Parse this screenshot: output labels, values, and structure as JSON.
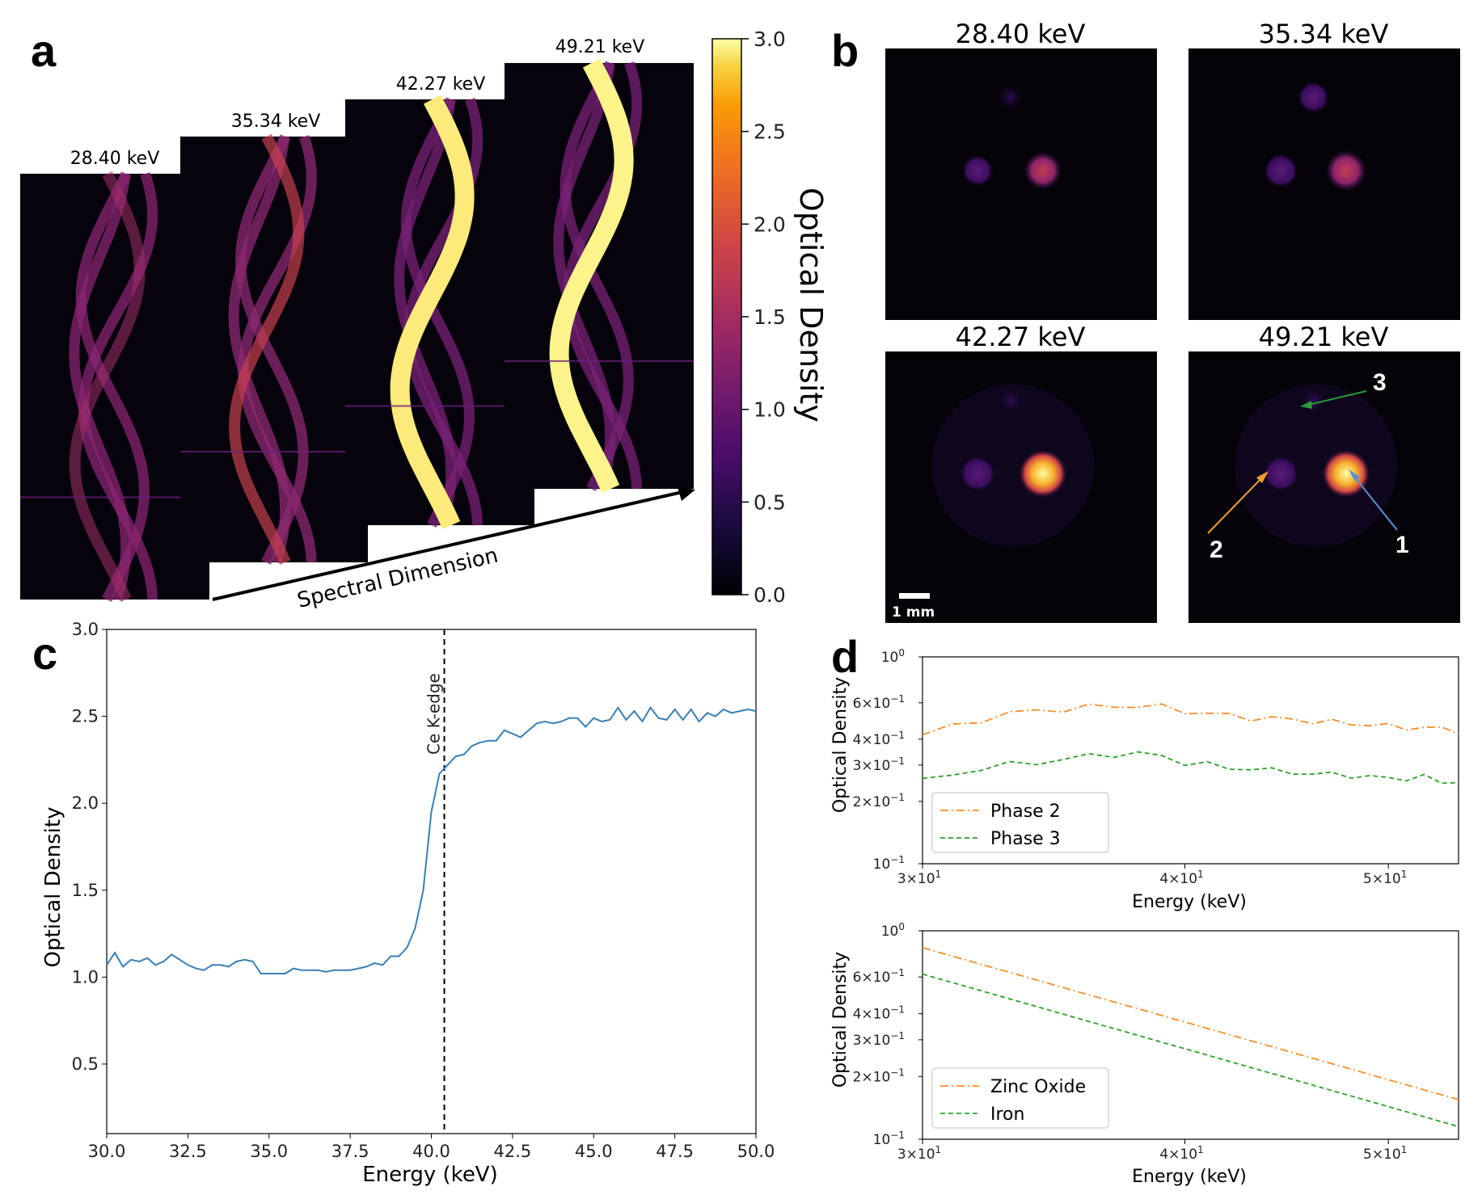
{
  "panel_letters": {
    "a": "a",
    "b": "b",
    "c": "c",
    "d": "d"
  },
  "panel_a": {
    "energies": [
      "28.40 keV",
      "35.34 keV",
      "42.27 keV",
      "49.21 keV"
    ],
    "arrow_label": "Spectral Dimension"
  },
  "colorbar": {
    "title": "Optical Density",
    "colormap": "inferno",
    "ticks": [
      "0.0",
      "0.5",
      "1.0",
      "1.5",
      "2.0",
      "2.5",
      "3.0"
    ],
    "range": [
      0,
      3
    ]
  },
  "panel_b": {
    "energies": [
      "28.40 keV",
      "35.34 keV",
      "42.27 keV",
      "49.21 keV"
    ],
    "scale_bar": "1 mm",
    "annotations": [
      "1",
      "2",
      "3"
    ],
    "annotation_colors": {
      "1": "#5b8fd4",
      "2": "#f0a030",
      "3": "#2a9d3a"
    }
  },
  "chart_data": [
    {
      "type": "line",
      "panel": "c",
      "xlabel": "Energy (keV)",
      "ylabel": "Optical Density",
      "xlim": [
        30,
        50
      ],
      "ylim": [
        0.1,
        3.0
      ],
      "xticks": [
        "30.0",
        "32.5",
        "35.0",
        "37.5",
        "40.0",
        "42.5",
        "45.0",
        "47.5",
        "50.0"
      ],
      "yticks": [
        "0.5",
        "1.0",
        "1.5",
        "2.0",
        "2.5",
        "3.0"
      ],
      "vline": {
        "x": 40.4,
        "label": "Ce K-edge"
      },
      "color": "#3a7fb5",
      "x": [
        30.0,
        30.25,
        30.5,
        30.75,
        31.0,
        31.25,
        31.5,
        31.75,
        32.0,
        32.25,
        32.5,
        32.75,
        33.0,
        33.25,
        33.5,
        33.75,
        34.0,
        34.25,
        34.5,
        34.75,
        35.0,
        35.25,
        35.5,
        35.75,
        36.0,
        36.25,
        36.5,
        36.75,
        37.0,
        37.25,
        37.5,
        37.75,
        38.0,
        38.25,
        38.5,
        38.75,
        39.0,
        39.25,
        39.5,
        39.75,
        40.0,
        40.25,
        40.5,
        40.75,
        41.0,
        41.25,
        41.5,
        41.75,
        42.0,
        42.25,
        42.5,
        42.75,
        43.0,
        43.25,
        43.5,
        43.75,
        44.0,
        44.25,
        44.5,
        44.75,
        45.0,
        45.25,
        45.5,
        45.75,
        46.0,
        46.25,
        46.5,
        46.75,
        47.0,
        47.25,
        47.5,
        47.75,
        48.0,
        48.25,
        48.5,
        48.75,
        49.0,
        49.25,
        49.5,
        49.75,
        50.0
      ],
      "y": [
        1.07,
        1.14,
        1.06,
        1.1,
        1.09,
        1.11,
        1.07,
        1.09,
        1.13,
        1.1,
        1.07,
        1.05,
        1.04,
        1.07,
        1.07,
        1.06,
        1.09,
        1.1,
        1.09,
        1.02,
        1.02,
        1.02,
        1.02,
        1.05,
        1.04,
        1.04,
        1.04,
        1.03,
        1.04,
        1.04,
        1.04,
        1.05,
        1.06,
        1.08,
        1.07,
        1.12,
        1.12,
        1.17,
        1.28,
        1.5,
        1.95,
        2.17,
        2.22,
        2.27,
        2.28,
        2.33,
        2.35,
        2.36,
        2.36,
        2.42,
        2.4,
        2.38,
        2.42,
        2.46,
        2.47,
        2.46,
        2.47,
        2.49,
        2.49,
        2.44,
        2.49,
        2.47,
        2.48,
        2.55,
        2.48,
        2.53,
        2.47,
        2.55,
        2.49,
        2.48,
        2.54,
        2.48,
        2.54,
        2.47,
        2.52,
        2.5,
        2.54,
        2.52,
        2.53,
        2.54,
        2.53
      ]
    },
    {
      "type": "line",
      "panel": "d-top",
      "xlabel": "Energy (keV)",
      "ylabel": "Optical Density",
      "log_x": true,
      "log_y": true,
      "xlim": [
        30,
        54
      ],
      "ylim": [
        0.1,
        1.0
      ],
      "xticks": [
        "3×10",
        "4×10",
        "5×10"
      ],
      "yticks": [
        "10",
        "2×10",
        "3×10",
        "4×10",
        "6×10",
        "10"
      ],
      "legend": "lower-left",
      "series": [
        {
          "name": "Phase 2",
          "color": "#f28e2b",
          "dash": "dashdot",
          "x": [
            30,
            31,
            32,
            33,
            34,
            35,
            36,
            37,
            38,
            39,
            40,
            41,
            42,
            43,
            44,
            45,
            46,
            47,
            48,
            49,
            50,
            51,
            52,
            53,
            54
          ],
          "y": [
            0.42,
            0.46,
            0.5,
            0.53,
            0.55,
            0.56,
            0.57,
            0.58,
            0.58,
            0.57,
            0.55,
            0.53,
            0.52,
            0.51,
            0.5,
            0.5,
            0.49,
            0.48,
            0.48,
            0.47,
            0.46,
            0.46,
            0.45,
            0.45,
            0.44
          ]
        },
        {
          "name": "Phase 3",
          "color": "#2ca02c",
          "dash": "dashed",
          "x": [
            30,
            31,
            32,
            33,
            34,
            35,
            36,
            37,
            38,
            39,
            40,
            41,
            42,
            43,
            44,
            45,
            46,
            47,
            48,
            49,
            50,
            51,
            52,
            53,
            54
          ],
          "y": [
            0.25,
            0.27,
            0.29,
            0.3,
            0.31,
            0.32,
            0.33,
            0.34,
            0.34,
            0.33,
            0.31,
            0.3,
            0.29,
            0.29,
            0.28,
            0.28,
            0.27,
            0.27,
            0.27,
            0.26,
            0.26,
            0.26,
            0.26,
            0.25,
            0.25
          ]
        }
      ]
    },
    {
      "type": "line",
      "panel": "d-bottom",
      "xlabel": "Energy (keV)",
      "ylabel": "Optical Density",
      "log_x": true,
      "log_y": true,
      "xlim": [
        30,
        54
      ],
      "ylim": [
        0.1,
        1.0
      ],
      "xticks": [
        "3×10",
        "4×10",
        "5×10"
      ],
      "yticks": [
        "10",
        "2×10",
        "3×10",
        "4×10",
        "6×10",
        "10"
      ],
      "legend": "lower-left",
      "series": [
        {
          "name": "Zinc Oxide",
          "color": "#f28e2b",
          "dash": "dashdot",
          "x": [
            30,
            54
          ],
          "y": [
            0.83,
            0.155
          ]
        },
        {
          "name": "Iron",
          "color": "#2ca02c",
          "dash": "dashed",
          "x": [
            30,
            54
          ],
          "y": [
            0.62,
            0.115
          ]
        }
      ]
    }
  ]
}
